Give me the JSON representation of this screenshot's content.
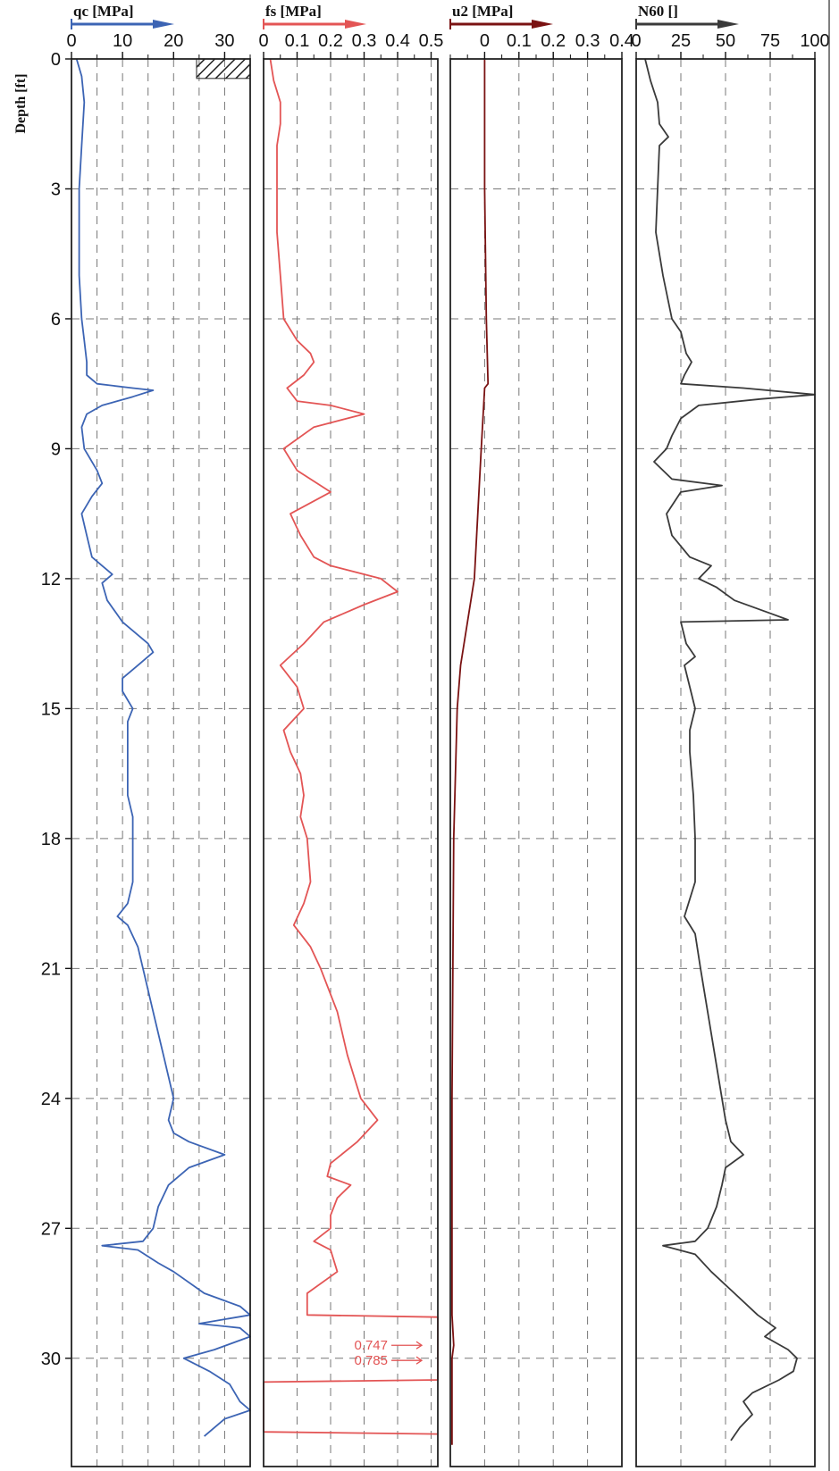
{
  "chart_data": {
    "type": "line",
    "y_axis": {
      "label": "Depth [ft]",
      "ylim": [
        0,
        32.5
      ],
      "inverted": true,
      "ticks": [
        0,
        3,
        6,
        9,
        12,
        15,
        18,
        21,
        24,
        27,
        30
      ]
    },
    "panels": [
      {
        "id": "qc",
        "title": "qc [MPa]",
        "xlim": [
          0,
          35
        ],
        "ticks": [
          0,
          10,
          20,
          30
        ],
        "color": "#3c64b4",
        "grid": true,
        "series": [
          {
            "depth": 0,
            "x": 1
          },
          {
            "depth": 0.4,
            "x": 2
          },
          {
            "depth": 1,
            "x": 2.5
          },
          {
            "depth": 2,
            "x": 2
          },
          {
            "depth": 3,
            "x": 1.5
          },
          {
            "depth": 4,
            "x": 1.5
          },
          {
            "depth": 5,
            "x": 1.5
          },
          {
            "depth": 6,
            "x": 2
          },
          {
            "depth": 6.5,
            "x": 2.5
          },
          {
            "depth": 7.0,
            "x": 3
          },
          {
            "depth": 7.3,
            "x": 3
          },
          {
            "depth": 7.5,
            "x": 5
          },
          {
            "depth": 7.6,
            "x": 12
          },
          {
            "depth": 7.65,
            "x": 16
          },
          {
            "depth": 7.8,
            "x": 12
          },
          {
            "depth": 8.0,
            "x": 6
          },
          {
            "depth": 8.2,
            "x": 3
          },
          {
            "depth": 8.5,
            "x": 2
          },
          {
            "depth": 9.0,
            "x": 2.5
          },
          {
            "depth": 9.5,
            "x": 5
          },
          {
            "depth": 9.8,
            "x": 6
          },
          {
            "depth": 10.1,
            "x": 4
          },
          {
            "depth": 10.5,
            "x": 2
          },
          {
            "depth": 11.0,
            "x": 3
          },
          {
            "depth": 11.5,
            "x": 4
          },
          {
            "depth": 11.7,
            "x": 6
          },
          {
            "depth": 11.9,
            "x": 8
          },
          {
            "depth": 12.1,
            "x": 6
          },
          {
            "depth": 12.5,
            "x": 7
          },
          {
            "depth": 13.0,
            "x": 10
          },
          {
            "depth": 13.5,
            "x": 15
          },
          {
            "depth": 13.7,
            "x": 16
          },
          {
            "depth": 14.0,
            "x": 13
          },
          {
            "depth": 14.3,
            "x": 10
          },
          {
            "depth": 14.6,
            "x": 10
          },
          {
            "depth": 15.0,
            "x": 12
          },
          {
            "depth": 15.3,
            "x": 11
          },
          {
            "depth": 16.0,
            "x": 11
          },
          {
            "depth": 16.5,
            "x": 11
          },
          {
            "depth": 17.0,
            "x": 11
          },
          {
            "depth": 17.5,
            "x": 12
          },
          {
            "depth": 18.0,
            "x": 12
          },
          {
            "depth": 19.0,
            "x": 12
          },
          {
            "depth": 19.5,
            "x": 11
          },
          {
            "depth": 19.8,
            "x": 9
          },
          {
            "depth": 20.0,
            "x": 11
          },
          {
            "depth": 20.5,
            "x": 13
          },
          {
            "depth": 21.0,
            "x": 14
          },
          {
            "depth": 22.0,
            "x": 16
          },
          {
            "depth": 23.0,
            "x": 18
          },
          {
            "depth": 23.5,
            "x": 19
          },
          {
            "depth": 24.0,
            "x": 20
          },
          {
            "depth": 24.5,
            "x": 19
          },
          {
            "depth": 24.8,
            "x": 20
          },
          {
            "depth": 25.0,
            "x": 23
          },
          {
            "depth": 25.3,
            "x": 30
          },
          {
            "depth": 25.6,
            "x": 23
          },
          {
            "depth": 26.0,
            "x": 19
          },
          {
            "depth": 26.5,
            "x": 17
          },
          {
            "depth": 27.0,
            "x": 16
          },
          {
            "depth": 27.3,
            "x": 14
          },
          {
            "depth": 27.4,
            "x": 6
          },
          {
            "depth": 27.5,
            "x": 13
          },
          {
            "depth": 27.8,
            "x": 17
          },
          {
            "depth": 28.0,
            "x": 20
          },
          {
            "depth": 28.5,
            "x": 26
          },
          {
            "depth": 28.8,
            "x": 33
          },
          {
            "depth": 29.0,
            "x": 35
          },
          {
            "depth": 29.1,
            "x": 30
          },
          {
            "depth": 29.2,
            "x": 25
          },
          {
            "depth": 29.3,
            "x": 33
          },
          {
            "depth": 29.5,
            "x": 35
          },
          {
            "depth": 29.8,
            "x": 28
          },
          {
            "depth": 30.0,
            "x": 22
          },
          {
            "depth": 30.3,
            "x": 27
          },
          {
            "depth": 30.6,
            "x": 31
          },
          {
            "depth": 31.0,
            "x": 33
          },
          {
            "depth": 31.2,
            "x": 36
          },
          {
            "depth": 31.4,
            "x": 30
          },
          {
            "depth": 31.8,
            "x": 26
          }
        ],
        "annotations": []
      },
      {
        "id": "fs",
        "title": "fs [MPa]",
        "xlim": [
          0,
          0.52
        ],
        "ticks": [
          0,
          0.1,
          0.2,
          0.3,
          0.4,
          0.5
        ],
        "color": "#e35555",
        "grid": true,
        "series": [
          {
            "depth": 0,
            "x": 0.02
          },
          {
            "depth": 0.5,
            "x": 0.03
          },
          {
            "depth": 1.0,
            "x": 0.05
          },
          {
            "depth": 1.5,
            "x": 0.05
          },
          {
            "depth": 2.0,
            "x": 0.04
          },
          {
            "depth": 3.0,
            "x": 0.04
          },
          {
            "depth": 4.0,
            "x": 0.04
          },
          {
            "depth": 5.0,
            "x": 0.05
          },
          {
            "depth": 6.0,
            "x": 0.06
          },
          {
            "depth": 6.5,
            "x": 0.1
          },
          {
            "depth": 6.8,
            "x": 0.14
          },
          {
            "depth": 7.0,
            "x": 0.15
          },
          {
            "depth": 7.3,
            "x": 0.12
          },
          {
            "depth": 7.6,
            "x": 0.07
          },
          {
            "depth": 7.9,
            "x": 0.1
          },
          {
            "depth": 8.0,
            "x": 0.2
          },
          {
            "depth": 8.2,
            "x": 0.3
          },
          {
            "depth": 8.5,
            "x": 0.15
          },
          {
            "depth": 9.0,
            "x": 0.06
          },
          {
            "depth": 9.5,
            "x": 0.1
          },
          {
            "depth": 10.0,
            "x": 0.2
          },
          {
            "depth": 10.5,
            "x": 0.08
          },
          {
            "depth": 11.0,
            "x": 0.11
          },
          {
            "depth": 11.5,
            "x": 0.15
          },
          {
            "depth": 11.7,
            "x": 0.2
          },
          {
            "depth": 12.0,
            "x": 0.35
          },
          {
            "depth": 12.3,
            "x": 0.4
          },
          {
            "depth": 12.6,
            "x": 0.3
          },
          {
            "depth": 13.0,
            "x": 0.18
          },
          {
            "depth": 13.5,
            "x": 0.12
          },
          {
            "depth": 14.0,
            "x": 0.05
          },
          {
            "depth": 14.5,
            "x": 0.1
          },
          {
            "depth": 15.0,
            "x": 0.12
          },
          {
            "depth": 15.5,
            "x": 0.06
          },
          {
            "depth": 16.0,
            "x": 0.08
          },
          {
            "depth": 16.5,
            "x": 0.11
          },
          {
            "depth": 17.0,
            "x": 0.12
          },
          {
            "depth": 17.5,
            "x": 0.11
          },
          {
            "depth": 18.0,
            "x": 0.13
          },
          {
            "depth": 19.0,
            "x": 0.14
          },
          {
            "depth": 19.5,
            "x": 0.12
          },
          {
            "depth": 20.0,
            "x": 0.09
          },
          {
            "depth": 20.5,
            "x": 0.14
          },
          {
            "depth": 21.0,
            "x": 0.17
          },
          {
            "depth": 22.0,
            "x": 0.22
          },
          {
            "depth": 23.0,
            "x": 0.25
          },
          {
            "depth": 23.5,
            "x": 0.27
          },
          {
            "depth": 24.0,
            "x": 0.29
          },
          {
            "depth": 24.5,
            "x": 0.34
          },
          {
            "depth": 25.0,
            "x": 0.28
          },
          {
            "depth": 25.5,
            "x": 0.2
          },
          {
            "depth": 25.8,
            "x": 0.19
          },
          {
            "depth": 26.0,
            "x": 0.26
          },
          {
            "depth": 26.3,
            "x": 0.22
          },
          {
            "depth": 26.7,
            "x": 0.2
          },
          {
            "depth": 27.0,
            "x": 0.2
          },
          {
            "depth": 27.3,
            "x": 0.15
          },
          {
            "depth": 27.5,
            "x": 0.2
          },
          {
            "depth": 28.0,
            "x": 0.22
          },
          {
            "depth": 28.5,
            "x": 0.13
          },
          {
            "depth": 29.0,
            "x": 0.13
          },
          {
            "depth": 29.05,
            "x": 0.52
          },
          {
            "depth": 29.4,
            "x": 0.52
          },
          {
            "depth": 29.6,
            "x": 0.52
          },
          {
            "depth": 30.5,
            "x": 0.52
          },
          {
            "depth": 30.55,
            "x": 0.0
          },
          {
            "depth": 31.7,
            "x": 0.0
          },
          {
            "depth": 31.75,
            "x": 0.52
          }
        ],
        "annotations": [
          {
            "depth": 29.7,
            "label": "0.747"
          },
          {
            "depth": 30.05,
            "label": "0.785"
          }
        ]
      },
      {
        "id": "u2",
        "title": "u2 [MPa]",
        "xlim": [
          -0.1,
          0.4
        ],
        "ticks": [
          0,
          0.1,
          0.2,
          0.3,
          0.4
        ],
        "color": "#7a1212",
        "grid": true,
        "series": [
          {
            "depth": 0,
            "x": 0.0
          },
          {
            "depth": 3,
            "x": 0.0
          },
          {
            "depth": 6,
            "x": 0.005
          },
          {
            "depth": 7.5,
            "x": 0.01
          },
          {
            "depth": 7.6,
            "x": 0.0
          },
          {
            "depth": 9.0,
            "x": -0.01
          },
          {
            "depth": 12.0,
            "x": -0.03
          },
          {
            "depth": 13.0,
            "x": -0.05
          },
          {
            "depth": 14.0,
            "x": -0.07
          },
          {
            "depth": 15.0,
            "x": -0.08
          },
          {
            "depth": 18.0,
            "x": -0.09
          },
          {
            "depth": 24.0,
            "x": -0.095
          },
          {
            "depth": 29.0,
            "x": -0.095
          },
          {
            "depth": 29.7,
            "x": -0.09
          },
          {
            "depth": 30.0,
            "x": -0.095
          },
          {
            "depth": 32.0,
            "x": -0.095
          }
        ],
        "annotations": []
      },
      {
        "id": "n60",
        "title": "N60 []",
        "xlim": [
          0,
          100
        ],
        "ticks": [
          0,
          25,
          50,
          75,
          100
        ],
        "color": "#3a3a3a",
        "grid": true,
        "series": [
          {
            "depth": 0,
            "x": 5
          },
          {
            "depth": 0.5,
            "x": 8
          },
          {
            "depth": 1.0,
            "x": 12
          },
          {
            "depth": 1.5,
            "x": 13
          },
          {
            "depth": 1.8,
            "x": 18
          },
          {
            "depth": 2.0,
            "x": 13
          },
          {
            "depth": 3.0,
            "x": 12
          },
          {
            "depth": 4.0,
            "x": 11
          },
          {
            "depth": 5.0,
            "x": 15
          },
          {
            "depth": 6.0,
            "x": 20
          },
          {
            "depth": 6.3,
            "x": 25
          },
          {
            "depth": 6.8,
            "x": 28
          },
          {
            "depth": 7.0,
            "x": 31
          },
          {
            "depth": 7.3,
            "x": 27
          },
          {
            "depth": 7.5,
            "x": 25
          },
          {
            "depth": 7.6,
            "x": 60
          },
          {
            "depth": 7.75,
            "x": 100
          },
          {
            "depth": 7.85,
            "x": 70
          },
          {
            "depth": 8.0,
            "x": 35
          },
          {
            "depth": 8.3,
            "x": 25
          },
          {
            "depth": 8.7,
            "x": 20
          },
          {
            "depth": 9.0,
            "x": 17
          },
          {
            "depth": 9.3,
            "x": 10
          },
          {
            "depth": 9.7,
            "x": 20
          },
          {
            "depth": 9.85,
            "x": 48
          },
          {
            "depth": 10.0,
            "x": 25
          },
          {
            "depth": 10.5,
            "x": 17
          },
          {
            "depth": 11.0,
            "x": 20
          },
          {
            "depth": 11.5,
            "x": 30
          },
          {
            "depth": 11.7,
            "x": 42
          },
          {
            "depth": 12.0,
            "x": 35
          },
          {
            "depth": 12.2,
            "x": 45
          },
          {
            "depth": 12.5,
            "x": 55
          },
          {
            "depth": 12.8,
            "x": 75
          },
          {
            "depth": 12.95,
            "x": 85
          },
          {
            "depth": 13.0,
            "x": 25
          },
          {
            "depth": 13.5,
            "x": 28
          },
          {
            "depth": 13.8,
            "x": 33
          },
          {
            "depth": 14.0,
            "x": 27
          },
          {
            "depth": 14.5,
            "x": 30
          },
          {
            "depth": 15.0,
            "x": 33
          },
          {
            "depth": 15.5,
            "x": 30
          },
          {
            "depth": 16.0,
            "x": 30
          },
          {
            "depth": 17.0,
            "x": 32
          },
          {
            "depth": 18.0,
            "x": 33
          },
          {
            "depth": 19.0,
            "x": 33
          },
          {
            "depth": 19.8,
            "x": 27
          },
          {
            "depth": 20.2,
            "x": 33
          },
          {
            "depth": 21.0,
            "x": 36
          },
          {
            "depth": 22.0,
            "x": 40
          },
          {
            "depth": 23.0,
            "x": 44
          },
          {
            "depth": 24.0,
            "x": 48
          },
          {
            "depth": 24.5,
            "x": 50
          },
          {
            "depth": 25.0,
            "x": 53
          },
          {
            "depth": 25.3,
            "x": 60
          },
          {
            "depth": 25.6,
            "x": 50
          },
          {
            "depth": 26.0,
            "x": 48
          },
          {
            "depth": 26.5,
            "x": 45
          },
          {
            "depth": 27.0,
            "x": 40
          },
          {
            "depth": 27.3,
            "x": 33
          },
          {
            "depth": 27.4,
            "x": 15
          },
          {
            "depth": 27.6,
            "x": 33
          },
          {
            "depth": 28.0,
            "x": 42
          },
          {
            "depth": 28.5,
            "x": 55
          },
          {
            "depth": 29.0,
            "x": 68
          },
          {
            "depth": 29.3,
            "x": 78
          },
          {
            "depth": 29.5,
            "x": 72
          },
          {
            "depth": 29.8,
            "x": 85
          },
          {
            "depth": 30.0,
            "x": 90
          },
          {
            "depth": 30.3,
            "x": 88
          },
          {
            "depth": 30.5,
            "x": 80
          },
          {
            "depth": 30.8,
            "x": 65
          },
          {
            "depth": 31.0,
            "x": 60
          },
          {
            "depth": 31.3,
            "x": 65
          },
          {
            "depth": 31.6,
            "x": 58
          },
          {
            "depth": 31.9,
            "x": 53
          }
        ],
        "annotations": []
      }
    ]
  }
}
